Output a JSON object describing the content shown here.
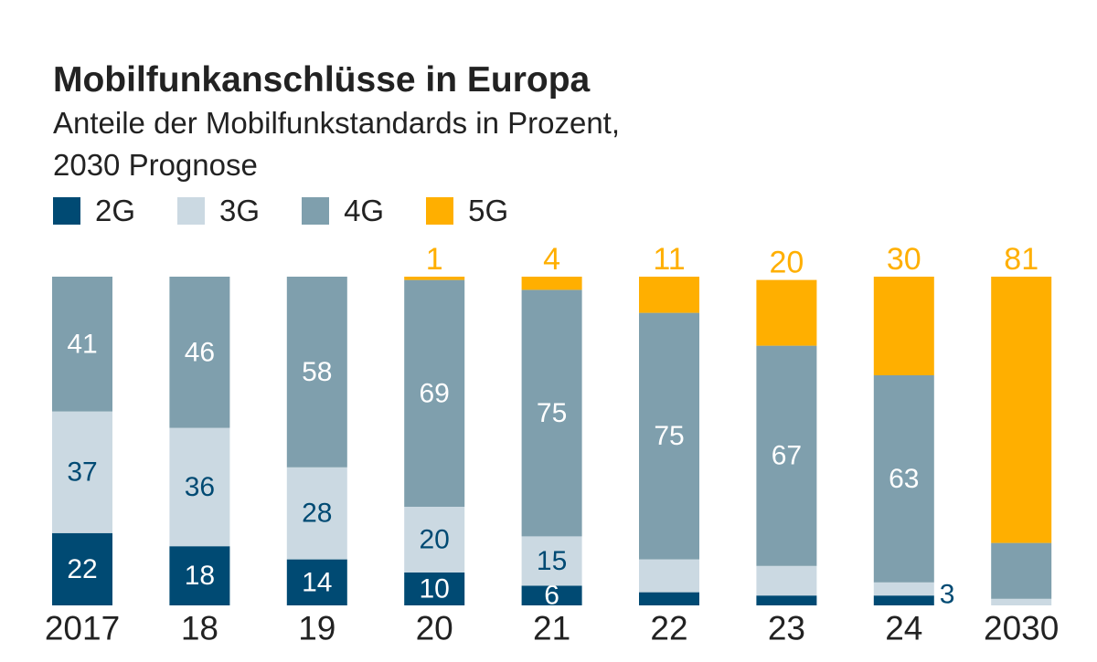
{
  "chart_data": {
    "type": "bar",
    "stacked": true,
    "title": "Mobilfunkanschlüsse in Europa",
    "subtitle_lines": [
      "Anteile der Mobilfunkstandards in Prozent,",
      "2030 Prognose"
    ],
    "categories": [
      "2017",
      "18",
      "19",
      "20",
      "21",
      "22",
      "23",
      "24",
      "2030"
    ],
    "series": [
      {
        "name": "2G",
        "color": "#004a73",
        "values": [
          22,
          18,
          14,
          10,
          6,
          4,
          3,
          3,
          0
        ]
      },
      {
        "name": "3G",
        "color": "#cbd9e2",
        "values": [
          37,
          36,
          28,
          20,
          15,
          10,
          9,
          4,
          2
        ]
      },
      {
        "name": "4G",
        "color": "#7f9fad",
        "values": [
          41,
          46,
          58,
          69,
          75,
          75,
          67,
          63,
          17
        ]
      },
      {
        "name": "5G",
        "color": "#ffaf00",
        "values": [
          null,
          null,
          null,
          1,
          4,
          11,
          20,
          30,
          81
        ]
      }
    ],
    "ylim": [
      0,
      100
    ],
    "legend": "top-left",
    "grid": false
  }
}
